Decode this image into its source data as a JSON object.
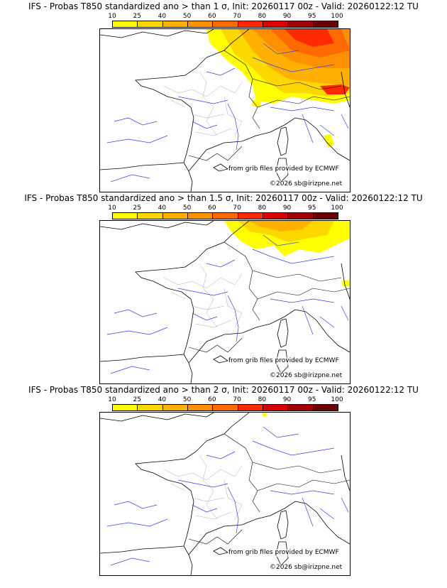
{
  "panels": [
    {
      "title": "IFS - Probas T850  standardized ano > than 1 σ, Init: 20260117 00z - Valid: 20260122:12 TU",
      "level": "1"
    },
    {
      "title": "IFS - Probas T850  standardized ano > than 1.5 σ, Init: 20260117 00z - Valid: 20260122:12 TU",
      "level": "1.5"
    },
    {
      "title": "IFS - Probas T850  standardized ano > than 2 σ, Init: 20260117 00z - Valid: 20260122:12 TU",
      "level": "2"
    }
  ],
  "colorbar": {
    "ticks": [
      "10",
      "25",
      "40",
      "50",
      "60",
      "70",
      "80",
      "90",
      "95",
      "100"
    ],
    "colors": [
      "#ffff00",
      "#ffd700",
      "#ffb000",
      "#ff9000",
      "#ff6a00",
      "#ff2a00",
      "#d80000",
      "#a00000",
      "#6a0000"
    ]
  },
  "credits": {
    "source": "from grib files provided by ECMWF",
    "copyright": "©2026 sb@irizpne.net"
  }
}
